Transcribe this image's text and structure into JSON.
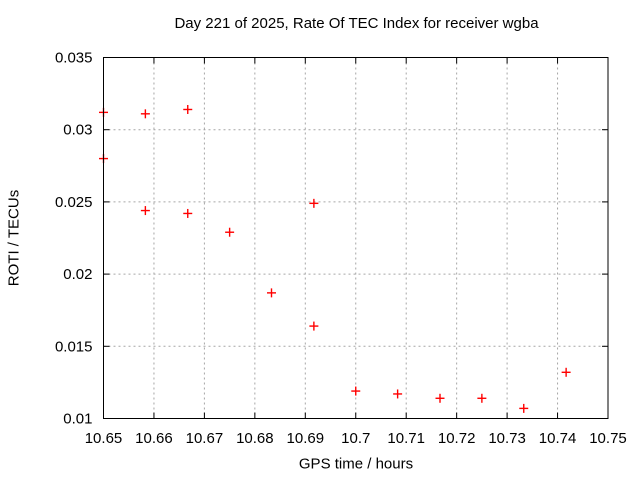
{
  "colors": {
    "background": "#ffffff",
    "border": "#000000",
    "grid": "#a6a6a6",
    "marker": "#ff0000",
    "text": "#000000"
  },
  "chart_data": {
    "type": "scatter",
    "title": "Day 221 of 2025, Rate Of TEC Index for receiver wgba",
    "xlabel": "GPS time / hours",
    "ylabel": "ROTI / TECUs",
    "xlim": [
      10.65,
      10.75
    ],
    "ylim": [
      0.01,
      0.035
    ],
    "xticks": [
      10.65,
      10.66,
      10.67,
      10.68,
      10.69,
      10.7,
      10.71,
      10.72,
      10.73,
      10.74,
      10.75
    ],
    "xtick_labels": [
      "10.65",
      "10.66",
      "10.67",
      "10.68",
      "10.69",
      "10.7",
      "10.71",
      "10.72",
      "10.73",
      "10.74",
      "10.75"
    ],
    "yticks": [
      0.01,
      0.015,
      0.02,
      0.025,
      0.03,
      0.035
    ],
    "ytick_labels": [
      "0.01",
      "0.015",
      "0.02",
      "0.025",
      "0.03",
      "0.035"
    ],
    "grid": true,
    "legend": "none",
    "marker": {
      "shape": "plus",
      "color": "#ff0000",
      "size": 9
    },
    "points": [
      [
        10.65,
        0.0312
      ],
      [
        10.65,
        0.028
      ],
      [
        10.6583,
        0.0311
      ],
      [
        10.6583,
        0.0244
      ],
      [
        10.6667,
        0.0314
      ],
      [
        10.6667,
        0.0242
      ],
      [
        10.675,
        0.0229
      ],
      [
        10.6833,
        0.0187
      ],
      [
        10.6917,
        0.0249
      ],
      [
        10.6917,
        0.0164
      ],
      [
        10.7,
        0.0119
      ],
      [
        10.7083,
        0.0117
      ],
      [
        10.7167,
        0.0114
      ],
      [
        10.725,
        0.0114
      ],
      [
        10.7333,
        0.0107
      ],
      [
        10.7417,
        0.0132
      ]
    ]
  }
}
